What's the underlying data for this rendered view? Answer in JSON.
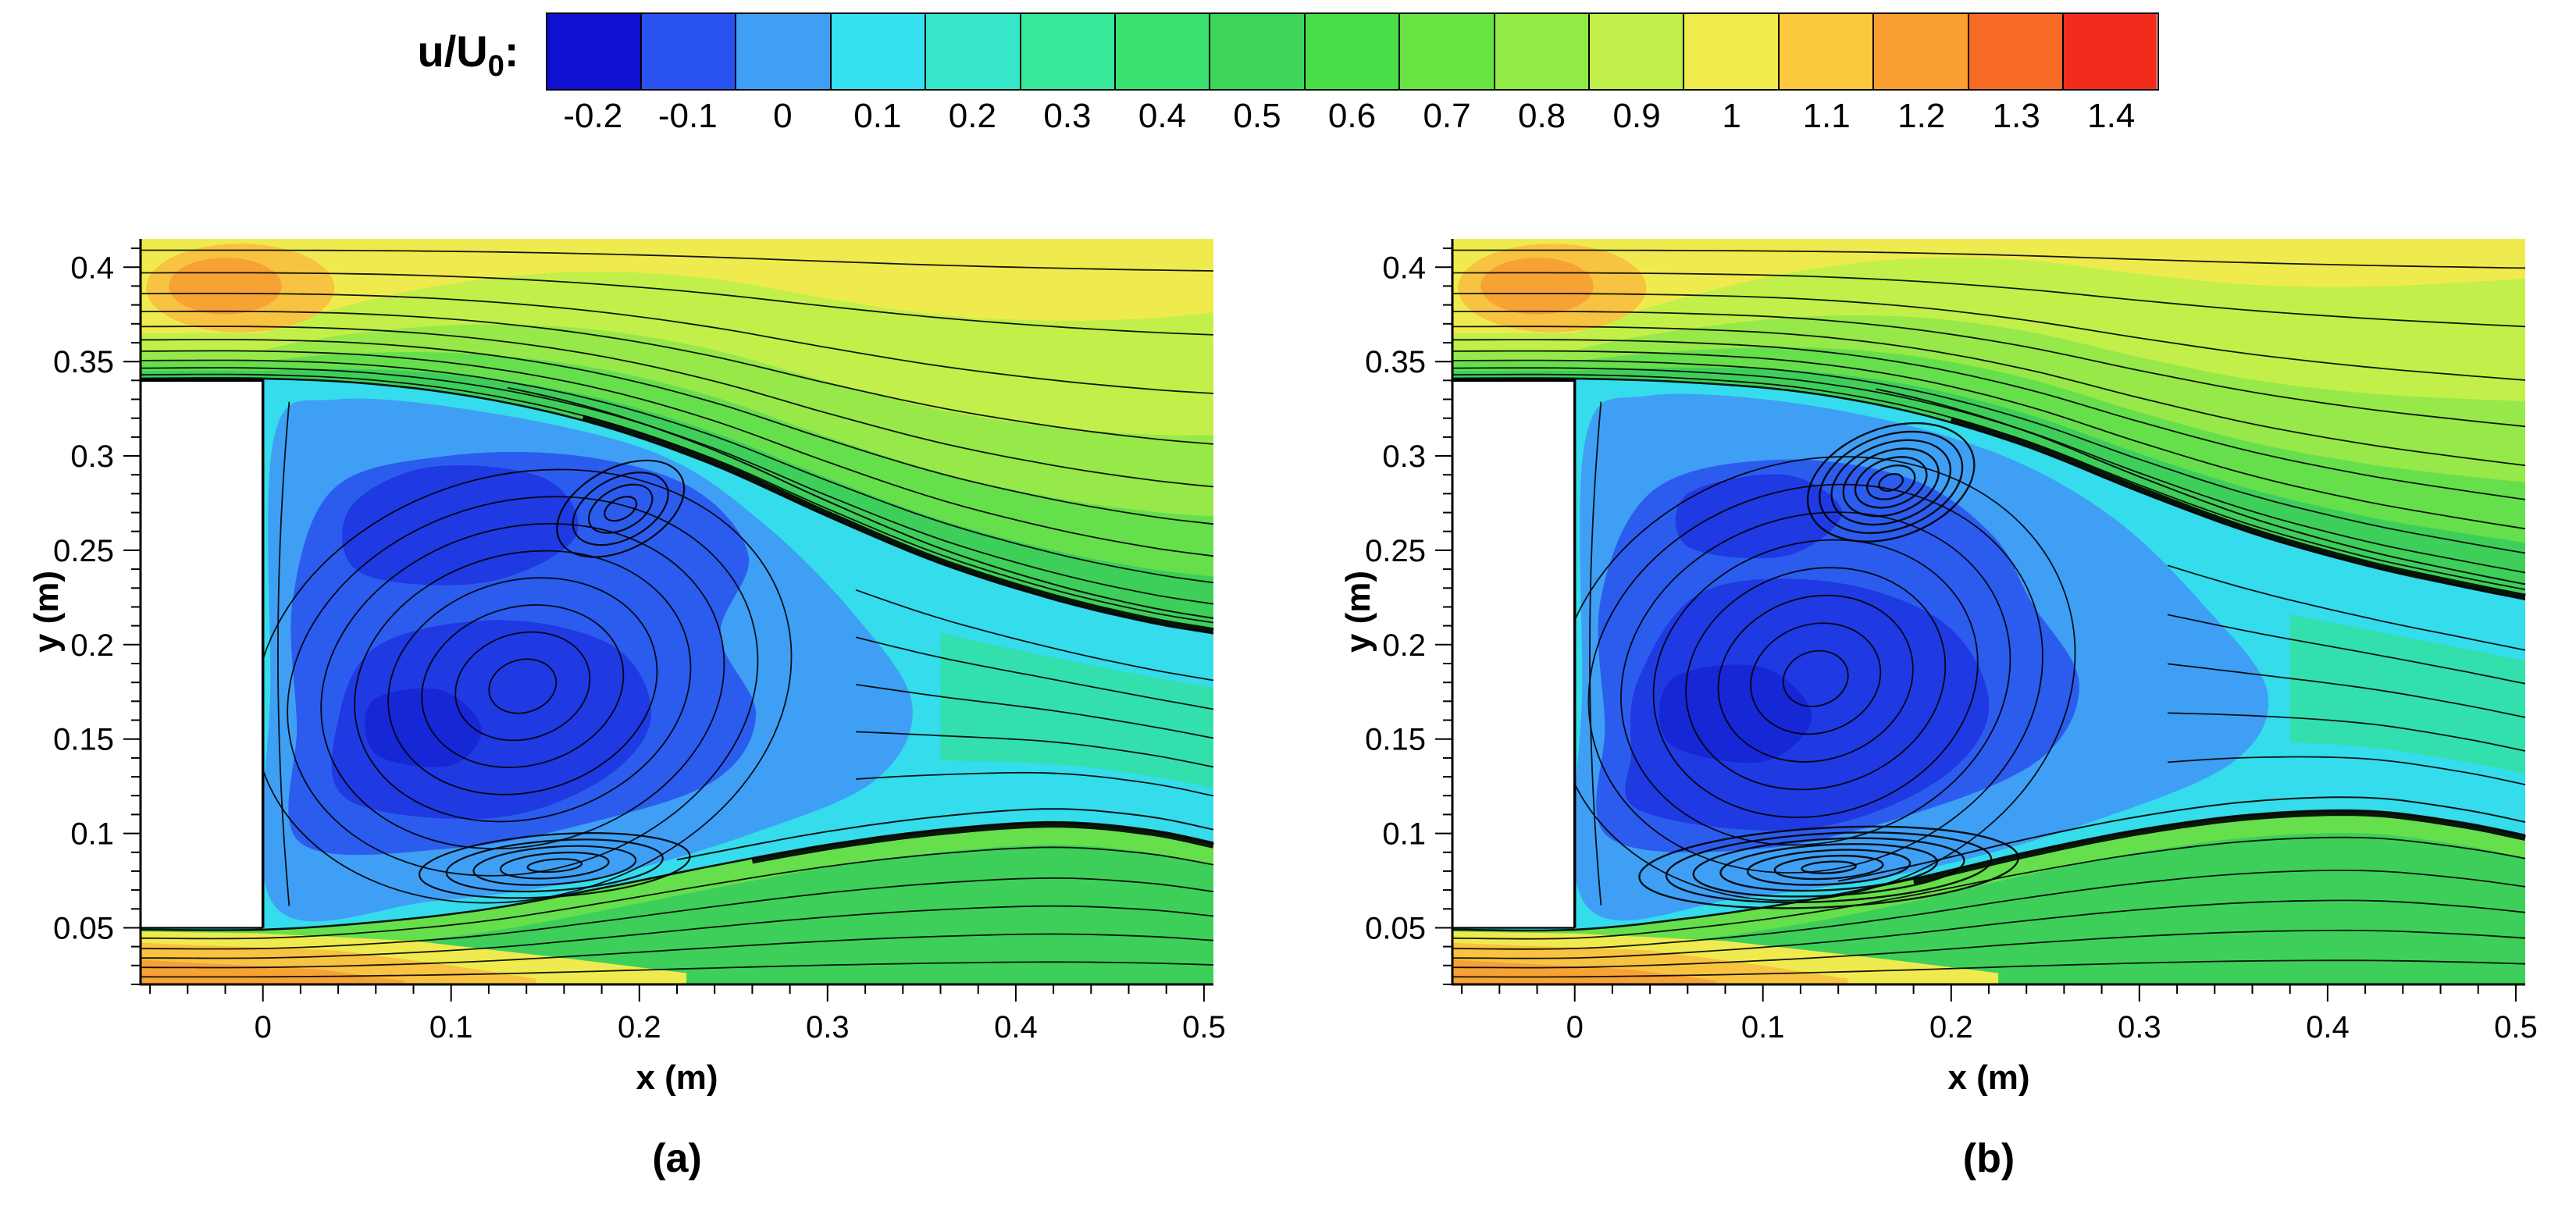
{
  "colorbar": {
    "label_prefix": "u/U",
    "label_sub": "0",
    "label_suffix": ":",
    "tick_labels": [
      "-0.2",
      "-0.1",
      "0",
      "0.1",
      "0.2",
      "0.3",
      "0.4",
      "0.5",
      "0.6",
      "0.7",
      "0.8",
      "0.9",
      "1",
      "1.1",
      "1.2",
      "1.3",
      "1.4"
    ],
    "segment_colors": [
      "#1010d0",
      "#2a52f0",
      "#3f9ff5",
      "#35e0f0",
      "#35e6c8",
      "#37e89b",
      "#3ae06d",
      "#3ed658",
      "#48dc46",
      "#68e443",
      "#92ea45",
      "#c0ef4a",
      "#f0ec4e",
      "#fcc83e",
      "#fb9e32",
      "#f76b26",
      "#f32b1d"
    ]
  },
  "field": {
    "colors": {
      "green": "#3ecf5a",
      "green_light": "#66df4d",
      "green_mid": "#96e948",
      "yellow_green": "#c3ef4b",
      "yellow": "#efeb4e",
      "orange_light": "#f8c341",
      "orange": "#f6a235",
      "cyan": "#35dcec",
      "teal": "#34dfae",
      "blue_light": "#3f9ff5",
      "blue": "#2c5cee",
      "blue_dark": "#1f3ae2",
      "blue_core": "#1627d6"
    },
    "top_bands": [
      {
        "color": "green_light",
        "d0": 0.004,
        "d1": 0.03
      },
      {
        "color": "green_mid",
        "d0": 0.009,
        "d1": 0.062
      },
      {
        "color": "yellow_green",
        "d0": 0.015,
        "d1": 0.105
      },
      {
        "color": "yellow",
        "d0": 0.024,
        "d1": 0.17
      }
    ],
    "bottom_light_offset": 0.012,
    "yellow_wedge": [
      [
        -0.065,
        0.048
      ],
      [
        0.0,
        0.047
      ],
      [
        0.08,
        0.043
      ],
      [
        0.16,
        0.034
      ],
      [
        0.225,
        0.026
      ],
      [
        0.225,
        0.02
      ],
      [
        -0.065,
        0.02
      ]
    ],
    "orange_light_wedge": [
      [
        -0.065,
        0.042
      ],
      [
        0.04,
        0.038
      ],
      [
        0.1,
        0.03
      ],
      [
        0.145,
        0.023
      ],
      [
        0.145,
        0.02
      ],
      [
        -0.065,
        0.02
      ]
    ],
    "orange_wedge": [
      [
        -0.065,
        0.033
      ],
      [
        0.03,
        0.028
      ],
      [
        0.075,
        0.022
      ],
      [
        0.075,
        0.02
      ],
      [
        -0.065,
        0.02
      ]
    ],
    "orange_blob": {
      "cx": -0.012,
      "cy": 0.389,
      "rx": 0.05,
      "ry": 0.0235,
      "cx2": -0.02,
      "cy2": 0.39,
      "rx2": 0.03,
      "ry2": 0.015
    }
  },
  "chart_data": [
    {
      "type": "contour-streamline",
      "panel_label": "(a)",
      "xlabel": "x (m)",
      "ylabel": "y (m)",
      "colorbar_variable": "u/U0",
      "xlim": [
        -0.065,
        0.505
      ],
      "ylim": [
        0.02,
        0.415
      ],
      "xticks": [
        "0",
        "0.1",
        "0.2",
        "0.3",
        "0.4",
        "0.5"
      ],
      "xtick_values": [
        0,
        0.1,
        0.2,
        0.3,
        0.4,
        0.5
      ],
      "yticks": [
        "0.05",
        "0.1",
        "0.15",
        "0.2",
        "0.25",
        "0.3",
        "0.35",
        "0.4"
      ],
      "ytick_values": [
        0.05,
        0.1,
        0.15,
        0.2,
        0.25,
        0.3,
        0.35,
        0.4
      ],
      "body": {
        "x0": -0.065,
        "x1": 0,
        "y0": 0.05,
        "y1": 0.34
      },
      "shear_upper": [
        [
          -0.065,
          0.341
        ],
        [
          0,
          0.341
        ],
        [
          0.06,
          0.338
        ],
        [
          0.12,
          0.33
        ],
        [
          0.18,
          0.316
        ],
        [
          0.24,
          0.295
        ],
        [
          0.3,
          0.268
        ],
        [
          0.36,
          0.243
        ],
        [
          0.42,
          0.224
        ],
        [
          0.47,
          0.212
        ],
        [
          0.505,
          0.206
        ]
      ],
      "shear_lower": [
        [
          -0.065,
          0.049
        ],
        [
          0,
          0.049
        ],
        [
          0.06,
          0.053
        ],
        [
          0.12,
          0.06
        ],
        [
          0.18,
          0.071
        ],
        [
          0.24,
          0.083
        ],
        [
          0.3,
          0.094
        ],
        [
          0.36,
          0.102
        ],
        [
          0.42,
          0.106
        ],
        [
          0.47,
          0.102
        ],
        [
          0.505,
          0.095
        ]
      ],
      "upper_vortex": {
        "cx": 0.19,
        "cy": 0.272,
        "rings": 4,
        "rmax": 0.027,
        "sx": 1.35,
        "sy": 0.8,
        "rot": -28,
        "width": 2.2
      },
      "lower_vortex": {
        "cx": 0.155,
        "cy": 0.083,
        "rings": 5,
        "rmax": 0.03,
        "sx": 2.4,
        "sy": 0.55,
        "rot": -4,
        "width": 2.2
      },
      "cavity": {
        "cx": 0.138,
        "cy": 0.178,
        "rings": 8,
        "rx": 0.145,
        "ry": 0.112,
        "rot": -16
      },
      "blobs": {
        "teal_from": 0.36,
        "blue_light": [
          [
            0.006,
            0.062
          ],
          [
            0.09,
            0.064
          ],
          [
            0.18,
            0.077
          ],
          [
            0.26,
            0.1
          ],
          [
            0.325,
            0.128
          ],
          [
            0.345,
            0.168
          ],
          [
            0.315,
            0.215
          ],
          [
            0.265,
            0.265
          ],
          [
            0.21,
            0.301
          ],
          [
            0.125,
            0.322
          ],
          [
            0.04,
            0.33
          ],
          [
            0.006,
            0.31
          ],
          [
            0.004,
            0.18
          ]
        ],
        "blue": [
          [
            0.02,
            0.095
          ],
          [
            0.1,
            0.092
          ],
          [
            0.175,
            0.106
          ],
          [
            0.24,
            0.128
          ],
          [
            0.262,
            0.163
          ],
          [
            0.243,
            0.205
          ],
          [
            0.258,
            0.247
          ],
          [
            0.228,
            0.283
          ],
          [
            0.168,
            0.3
          ],
          [
            0.098,
            0.3
          ],
          [
            0.038,
            0.283
          ],
          [
            0.016,
            0.225
          ],
          [
            0.018,
            0.158
          ]
        ],
        "blue_dark": [
          [
            0.045,
            0.118
          ],
          [
            0.12,
            0.108
          ],
          [
            0.178,
            0.127
          ],
          [
            0.206,
            0.16
          ],
          [
            0.188,
            0.198
          ],
          [
            0.128,
            0.213
          ],
          [
            0.062,
            0.2
          ],
          [
            0.04,
            0.16
          ]
        ],
        "blue_dark2": [
          [
            0.052,
            0.238
          ],
          [
            0.118,
            0.233
          ],
          [
            0.166,
            0.257
          ],
          [
            0.15,
            0.288
          ],
          [
            0.088,
            0.294
          ],
          [
            0.046,
            0.272
          ]
        ],
        "blue_core": [
          [
            0.06,
            0.142
          ],
          [
            0.1,
            0.136
          ],
          [
            0.116,
            0.156
          ],
          [
            0.094,
            0.176
          ],
          [
            0.058,
            0.17
          ]
        ]
      },
      "top_stream_starts": [
        0.343,
        0.3465,
        0.3505,
        0.3555,
        0.3615,
        0.3685,
        0.3765,
        0.386,
        0.397,
        0.409
      ],
      "bottom_stream_starts": [
        0.024,
        0.029,
        0.034,
        0.039,
        0.0445
      ],
      "wake_fracs": [
        0.14,
        0.32,
        0.5,
        0.68,
        0.86
      ],
      "upper_bundle_from": 0.17,
      "lower_bundle_from": 0.26
    },
    {
      "type": "contour-streamline",
      "panel_label": "(b)",
      "xlabel": "x (m)",
      "ylabel": "y (m)",
      "colorbar_variable": "u/U0",
      "xlim": [
        -0.065,
        0.505
      ],
      "ylim": [
        0.02,
        0.415
      ],
      "xticks": [
        "0",
        "0.1",
        "0.2",
        "0.3",
        "0.4",
        "0.5"
      ],
      "xtick_values": [
        0,
        0.1,
        0.2,
        0.3,
        0.4,
        0.5
      ],
      "yticks": [
        "0.05",
        "0.1",
        "0.15",
        "0.2",
        "0.25",
        "0.3",
        "0.35",
        "0.4"
      ],
      "ytick_values": [
        0.05,
        0.1,
        0.15,
        0.2,
        0.25,
        0.3,
        0.35,
        0.4
      ],
      "body": {
        "x0": -0.065,
        "x1": 0,
        "y0": 0.05,
        "y1": 0.34
      },
      "shear_upper": [
        [
          -0.065,
          0.341
        ],
        [
          0,
          0.341
        ],
        [
          0.06,
          0.339
        ],
        [
          0.12,
          0.334
        ],
        [
          0.18,
          0.323
        ],
        [
          0.24,
          0.305
        ],
        [
          0.3,
          0.281
        ],
        [
          0.36,
          0.259
        ],
        [
          0.42,
          0.242
        ],
        [
          0.47,
          0.231
        ],
        [
          0.505,
          0.224
        ]
      ],
      "shear_lower": [
        [
          -0.065,
          0.049
        ],
        [
          0,
          0.049
        ],
        [
          0.06,
          0.055
        ],
        [
          0.12,
          0.064
        ],
        [
          0.18,
          0.076
        ],
        [
          0.24,
          0.09
        ],
        [
          0.3,
          0.102
        ],
        [
          0.36,
          0.11
        ],
        [
          0.42,
          0.112
        ],
        [
          0.47,
          0.106
        ],
        [
          0.505,
          0.099
        ]
      ],
      "upper_vortex": {
        "cx": 0.168,
        "cy": 0.286,
        "rings": 7,
        "rmax": 0.034,
        "sx": 1.35,
        "sy": 0.85,
        "rot": -20,
        "width": 2.4
      },
      "lower_vortex": {
        "cx": 0.135,
        "cy": 0.082,
        "rings": 7,
        "rmax": 0.042,
        "sx": 2.4,
        "sy": 0.5,
        "rot": -3,
        "width": 2.4
      },
      "cavity": {
        "cx": 0.128,
        "cy": 0.182,
        "rings": 8,
        "rx": 0.14,
        "ry": 0.115,
        "rot": -18
      },
      "blobs": {
        "teal_from": 0.38,
        "blue_light": [
          [
            0.006,
            0.062
          ],
          [
            0.09,
            0.066
          ],
          [
            0.19,
            0.082
          ],
          [
            0.28,
            0.108
          ],
          [
            0.35,
            0.138
          ],
          [
            0.368,
            0.175
          ],
          [
            0.335,
            0.22
          ],
          [
            0.285,
            0.268
          ],
          [
            0.22,
            0.303
          ],
          [
            0.13,
            0.326
          ],
          [
            0.04,
            0.332
          ],
          [
            0.006,
            0.31
          ],
          [
            0.004,
            0.18
          ]
        ],
        "blue": [
          [
            0.018,
            0.098
          ],
          [
            0.1,
            0.092
          ],
          [
            0.185,
            0.112
          ],
          [
            0.248,
            0.14
          ],
          [
            0.268,
            0.18
          ],
          [
            0.243,
            0.222
          ],
          [
            0.222,
            0.258
          ],
          [
            0.178,
            0.288
          ],
          [
            0.108,
            0.298
          ],
          [
            0.042,
            0.282
          ],
          [
            0.014,
            0.225
          ],
          [
            0.016,
            0.158
          ]
        ],
        "blue_dark": [
          [
            0.035,
            0.112
          ],
          [
            0.12,
            0.102
          ],
          [
            0.19,
            0.126
          ],
          [
            0.22,
            0.165
          ],
          [
            0.198,
            0.21
          ],
          [
            0.138,
            0.233
          ],
          [
            0.068,
            0.228
          ],
          [
            0.034,
            0.182
          ],
          [
            0.03,
            0.143
          ]
        ],
        "blue_dark2": [
          [
            0.06,
            0.252
          ],
          [
            0.112,
            0.247
          ],
          [
            0.142,
            0.27
          ],
          [
            0.112,
            0.29
          ],
          [
            0.06,
            0.28
          ]
        ],
        "blue_core": [
          [
            0.05,
            0.148
          ],
          [
            0.1,
            0.138
          ],
          [
            0.126,
            0.162
          ],
          [
            0.1,
            0.188
          ],
          [
            0.052,
            0.182
          ]
        ]
      },
      "top_stream_starts": [
        0.343,
        0.3465,
        0.3505,
        0.3555,
        0.3615,
        0.3685,
        0.3765,
        0.386,
        0.397,
        0.409
      ],
      "bottom_stream_starts": [
        0.024,
        0.029,
        0.034,
        0.039,
        0.0445
      ],
      "wake_fracs": [
        0.14,
        0.32,
        0.5,
        0.68,
        0.86
      ],
      "upper_bundle_from": 0.2,
      "lower_bundle_from": 0.18
    }
  ]
}
